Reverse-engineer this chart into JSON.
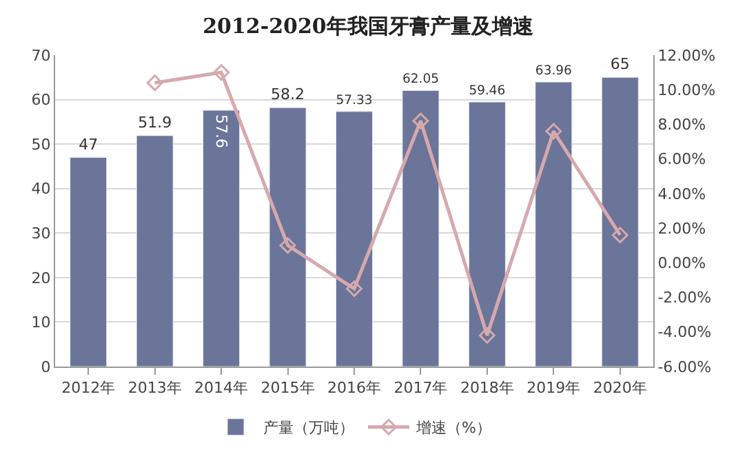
{
  "chart_data": {
    "type": "bar",
    "title": "2012-2020年我国牙膏产量及增速",
    "categories": [
      "2012年",
      "2013年",
      "2014年",
      "2015年",
      "2016年",
      "2017年",
      "2018年",
      "2019年",
      "2020年"
    ],
    "series": [
      {
        "name": "产量（万吨）",
        "color": "#6b7499",
        "values": [
          47,
          51.9,
          57.6,
          58.2,
          57.33,
          62.05,
          59.46,
          63.96,
          65
        ],
        "data_labels": true
      },
      {
        "name": "增速（%）",
        "type": "line",
        "axis": "y2",
        "color": "#d6a9ac",
        "marker": "diamond",
        "values": [
          null,
          10.4,
          11.0,
          1.0,
          -1.5,
          8.2,
          -4.2,
          7.6,
          1.6
        ]
      }
    ],
    "ylim": [
      0,
      70
    ],
    "yticks": [
      0,
      10,
      20,
      30,
      40,
      50,
      60,
      70
    ],
    "y2lim": [
      -6,
      12
    ],
    "y2ticks": [
      {
        "value": -6,
        "label": "-6.00%"
      },
      {
        "value": -4,
        "label": "-4.00%"
      },
      {
        "value": -2,
        "label": "-2.00%"
      },
      {
        "value": 0,
        "label": "0.00%"
      },
      {
        "value": 2,
        "label": "2.00%"
      },
      {
        "value": 4,
        "label": "4.00%"
      },
      {
        "value": 6,
        "label": "6.00%"
      },
      {
        "value": 8,
        "label": "8.00%"
      },
      {
        "value": 10,
        "label": "10.00%"
      },
      {
        "value": 12,
        "label": "12.00%"
      }
    ],
    "grid": "y",
    "legend": "bottom"
  }
}
